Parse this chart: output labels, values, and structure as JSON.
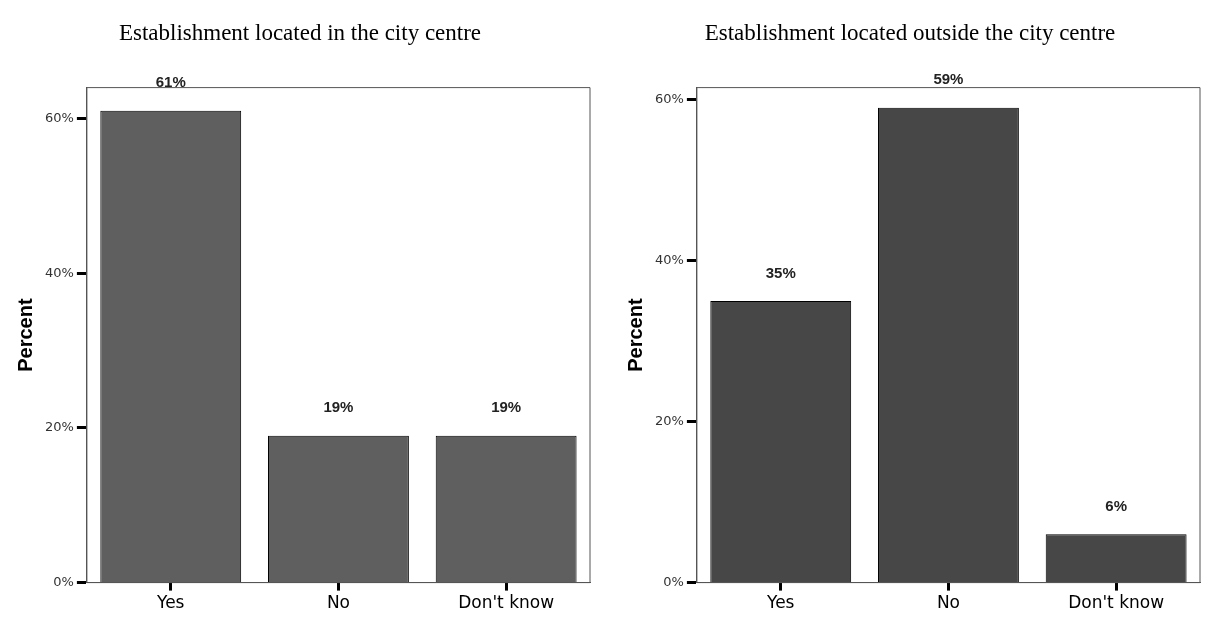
{
  "chart_data": [
    {
      "type": "bar",
      "title": "Establishment located in the city centre",
      "ylabel": "Percent",
      "categories": [
        "Yes",
        "No",
        "Don't know"
      ],
      "values": [
        61,
        19,
        19
      ],
      "value_labels": [
        "61%",
        "19%",
        "19%"
      ],
      "color": "#5f5f5f",
      "ylim": [
        0,
        64
      ],
      "yticks": [
        {
          "value": 0,
          "label": "0%"
        },
        {
          "value": 20,
          "label": "20%"
        },
        {
          "value": 40,
          "label": "40%"
        },
        {
          "value": 60,
          "label": "60%"
        }
      ],
      "grid": false,
      "legend": false
    },
    {
      "type": "bar",
      "title": "Establishment located outside the city centre",
      "ylabel": "Percent",
      "categories": [
        "Yes",
        "No",
        "Don't know"
      ],
      "values": [
        35,
        59,
        6
      ],
      "value_labels": [
        "35%",
        "59%",
        "6%"
      ],
      "color": "#474747",
      "ylim": [
        0,
        61.5
      ],
      "yticks": [
        {
          "value": 0,
          "label": "0%"
        },
        {
          "value": 20,
          "label": "20%"
        },
        {
          "value": 40,
          "label": "40%"
        },
        {
          "value": 60,
          "label": "60%"
        }
      ],
      "grid": false,
      "legend": false
    }
  ]
}
